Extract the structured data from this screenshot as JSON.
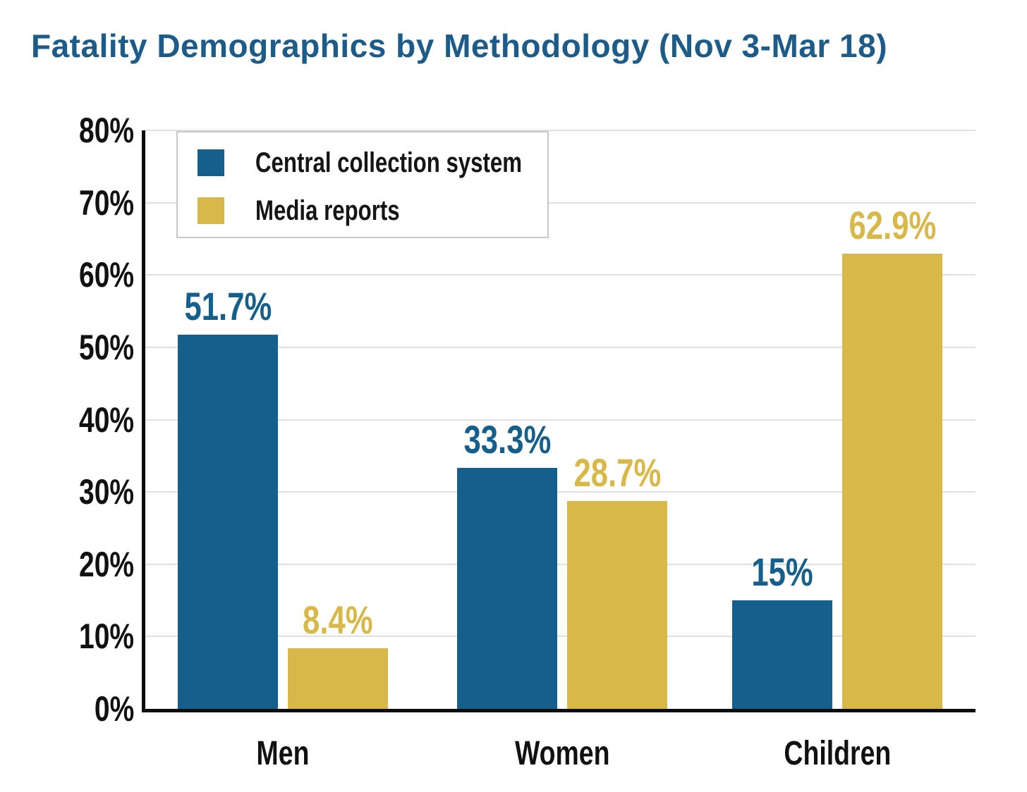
{
  "title": "Fatality Demographics by Methodology (Nov 3-Mar 18)",
  "colors": {
    "title": "#1d5c88",
    "axis": "#0c0c0c",
    "gridline": "#e0e0e0",
    "tick_text": "#111111",
    "legend_border": "#c8c8c8",
    "background": "#ffffff",
    "series_blue": "#155f8c",
    "series_gold": "#d9b84a"
  },
  "chart_data": {
    "type": "bar",
    "title": "Fatality Demographics by Methodology (Nov 3-Mar 18)",
    "categories": [
      "Men",
      "Women",
      "Children"
    ],
    "series": [
      {
        "name": "Central collection system",
        "color": "#155f8c",
        "values": [
          51.7,
          33.3,
          15
        ]
      },
      {
        "name": "Media reports",
        "color": "#d9b84a",
        "values": [
          8.4,
          28.7,
          62.9
        ]
      }
    ],
    "data_labels": [
      [
        "51.7%",
        "33.3%",
        "15%"
      ],
      [
        "8.4%",
        "28.7%",
        "62.9%"
      ]
    ],
    "xlabel": "",
    "ylabel": "",
    "ylim": [
      0,
      80
    ],
    "ytick_step": 10,
    "ytick_labels": [
      "0%",
      "10%",
      "20%",
      "30%",
      "40%",
      "50%",
      "60%",
      "70%",
      "80%"
    ],
    "grid": true,
    "legend_position": "top-left",
    "value_suffix": "%"
  }
}
